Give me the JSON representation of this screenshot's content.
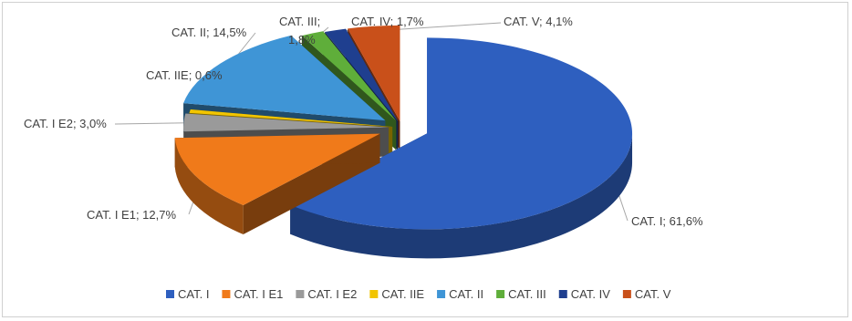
{
  "chart_data": {
    "type": "pie",
    "style": "3d-exploded",
    "title": "",
    "legend_position": "bottom",
    "slices": [
      {
        "name": "CAT. I",
        "value": 61.6,
        "label": "CAT. I; 61,6%",
        "color": "#2e5fbf"
      },
      {
        "name": "CAT. I E1",
        "value": 12.7,
        "label": "CAT. I E1; 12,7%",
        "color": "#f07a1a"
      },
      {
        "name": "CAT. I E2",
        "value": 3.0,
        "label": "CAT. I E2; 3,0%",
        "color": "#9a9a9a"
      },
      {
        "name": "CAT. IIE",
        "value": 0.6,
        "label": "CAT. IIE; 0,6%",
        "color": "#f2c500"
      },
      {
        "name": "CAT. II",
        "value": 14.5,
        "label": "CAT. II; 14,5%",
        "color": "#3f95d6"
      },
      {
        "name": "CAT. III",
        "value": 1.8,
        "label": "CAT. III;",
        "label_line2": "1,8%",
        "color": "#5fae3a"
      },
      {
        "name": "CAT. IV",
        "value": 1.7,
        "label": "CAT. IV; 1,7%",
        "color": "#1f3f8f"
      },
      {
        "name": "CAT. V",
        "value": 4.1,
        "label": "CAT. V; 4,1%",
        "color": "#c9501a"
      }
    ]
  }
}
